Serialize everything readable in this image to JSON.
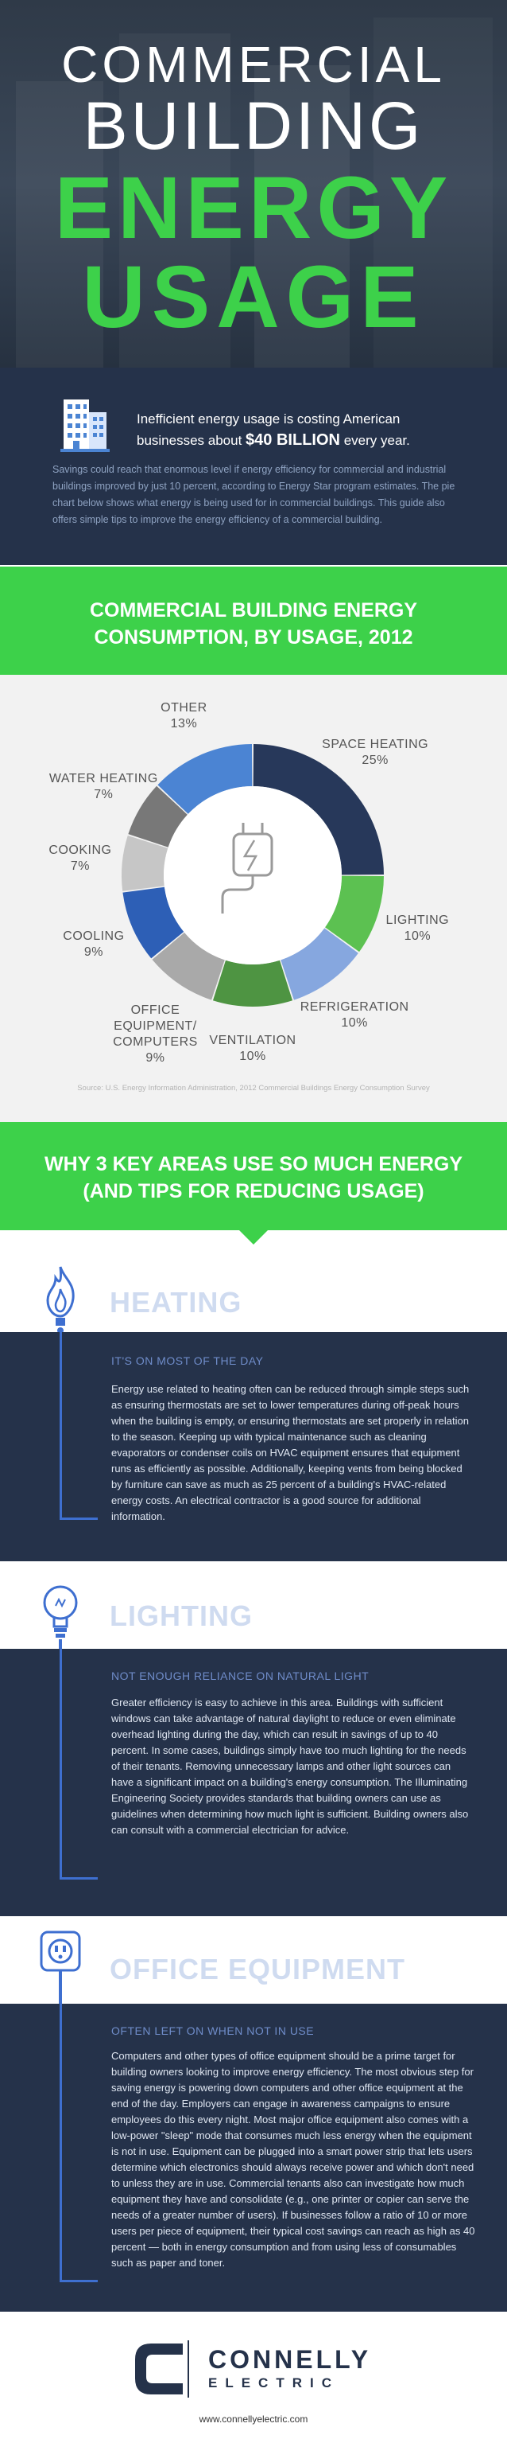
{
  "hero": {
    "line1": "COMMERCIAL",
    "line2": "BUILDING",
    "line3": "ENERGY",
    "line4": "USAGE"
  },
  "intro": {
    "lead_before": "Inefficient energy usage is costing American businesses about ",
    "lead_amount": "$40 BILLION",
    "lead_after": " every year.",
    "body": "Savings could reach that enormous level if energy efficiency for commercial and industrial buildings improved by just 10 percent, according to Energy Star program estimates. The pie chart below shows what energy is being used for in commercial buildings. This guide also offers simple tips to improve the energy efficiency of a commercial building."
  },
  "chart_section": {
    "title_line1": "COMMERCIAL BUILDING ENERGY",
    "title_line2": "CONSUMPTION, BY USAGE, 2012",
    "source": "Source: U.S. Energy Information Administration, 2012 Commercial Buildings Energy Consumption Survey"
  },
  "chart_data": {
    "type": "pie",
    "title": "COMMERCIAL BUILDING ENERGY CONSUMPTION, BY USAGE, 2012",
    "slices": [
      {
        "label": "SPACE HEATING",
        "value": 25,
        "pct": "25%",
        "color": "#27385a"
      },
      {
        "label": "LIGHTING",
        "value": 10,
        "pct": "10%",
        "color": "#5cc151"
      },
      {
        "label": "REFRIGERATION",
        "value": 10,
        "pct": "10%",
        "color": "#86a7df"
      },
      {
        "label": "VENTILATION",
        "value": 10,
        "pct": "10%",
        "color": "#4e9442"
      },
      {
        "label": "OFFICE EQUIPMENT/ COMPUTERS",
        "value": 9,
        "pct": "9%",
        "color": "#a9a9a9"
      },
      {
        "label": "COOLING",
        "value": 9,
        "pct": "9%",
        "color": "#2d5fb6"
      },
      {
        "label": "COOKING",
        "value": 7,
        "pct": "7%",
        "color": "#c6c6c6"
      },
      {
        "label": "WATER HEATING",
        "value": 7,
        "pct": "7%",
        "color": "#787878"
      },
      {
        "label": "OTHER",
        "value": 13,
        "pct": "13%",
        "color": "#4b84d3"
      }
    ]
  },
  "why_banner": {
    "line1": "WHY 3 KEY AREAS USE SO MUCH ENERGY",
    "line2": "(AND TIPS FOR REDUCING USAGE)"
  },
  "sections": {
    "heating": {
      "title": "HEATING",
      "subtitle": "IT'S ON MOST OF THE DAY",
      "body": "Energy use related to heating often can be reduced through simple steps such as ensuring thermostats are set to lower temperatures during off-peak hours when the building is empty, or ensuring thermostats are set properly in relation to the season. Keeping up with typical maintenance such as cleaning evaporators or condenser coils on HVAC equipment ensures that equipment runs as efficiently as possible. Additionally, keeping vents from being blocked by furniture can save as much as 25 percent of a building's HVAC-related energy costs. An electrical contractor is a good source for additional information."
    },
    "lighting": {
      "title": "LIGHTING",
      "subtitle": "NOT ENOUGH RELIANCE ON NATURAL LIGHT",
      "body": "Greater efficiency is easy to achieve in this area. Buildings with sufficient windows can take advantage of natural daylight to reduce or even eliminate overhead lighting during the day, which can result in savings of up to 40 percent. In some cases, buildings simply have too much lighting for the needs of their tenants. Removing unnecessary lamps and other light sources can have a significant impact on a building's energy consumption. The Illuminating Engineering Society provides standards that building owners can use as guidelines when determining how much light is sufficient. Building owners also can consult with a commercial electrician for advice."
    },
    "office": {
      "title": "OFFICE EQUIPMENT",
      "subtitle": "OFTEN LEFT ON WHEN NOT IN USE",
      "body": "Computers and other types of office equipment should be a prime target for building owners looking to improve energy efficiency. The most obvious step for saving energy is powering down computers and other office equipment at the end of the day. Employers can engage in awareness campaigns to ensure employees do this every night. Most major office equipment also comes with a low-power \"sleep\" mode that consumes much less energy when the equipment is not in use. Equipment can be plugged into a smart power strip that lets users determine which electronics should always receive power and which don't need to unless they are in use. Commercial tenants also can investigate how much equipment they have and consolidate (e.g., one printer or copier can serve the needs of a greater number of users). If businesses follow a ratio of 10 or more users per piece of equipment, their typical cost savings can reach as high as 40 percent — both in energy consumption and from using less of consumables such as paper and toner."
    }
  },
  "footer": {
    "brand_line1": "CONNELLY",
    "brand_line2": "ELECTRIC",
    "url": "www.connellyelectric.com"
  },
  "colors": {
    "navy": "#25324a",
    "green": "#3dd14a",
    "accent_blue": "#3e6fd0"
  }
}
